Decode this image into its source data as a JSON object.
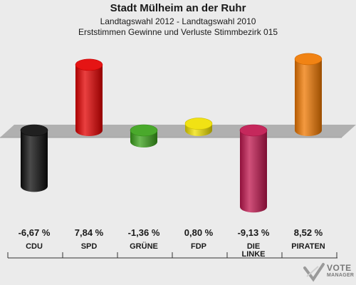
{
  "chart_data": {
    "type": "bar",
    "title": "Stadt Mülheim an der Ruhr",
    "subtitle": "Landtagswahl 2012 - Landtagswahl 2010",
    "subtitle2": "Erststimmen Gewinne und Verluste Stimmbezirk 015",
    "categories": [
      "CDU",
      "SPD",
      "GRÜNE",
      "FDP",
      "DIE LINKE",
      "PIRATEN"
    ],
    "category_lines": [
      [
        "CDU"
      ],
      [
        "SPD"
      ],
      [
        "GRÜNE"
      ],
      [
        "FDP"
      ],
      [
        "DIE",
        "LINKE"
      ],
      [
        "PIRATEN"
      ]
    ],
    "values": [
      -6.67,
      7.84,
      -1.36,
      0.8,
      -9.13,
      8.52
    ],
    "value_labels": [
      "-6,67 %",
      "7,84 %",
      "-1,36 %",
      "0,80 %",
      "-9,13 %",
      "8,52 %"
    ],
    "colors": [
      "#0d0d0d",
      "#e30000",
      "#3aa21a",
      "#f0e000",
      "#c0154e",
      "#f07800"
    ],
    "xlabel": "",
    "ylabel": "",
    "grid": false
  },
  "logo": {
    "line1": "VOTE",
    "line2": "MANAGER"
  }
}
